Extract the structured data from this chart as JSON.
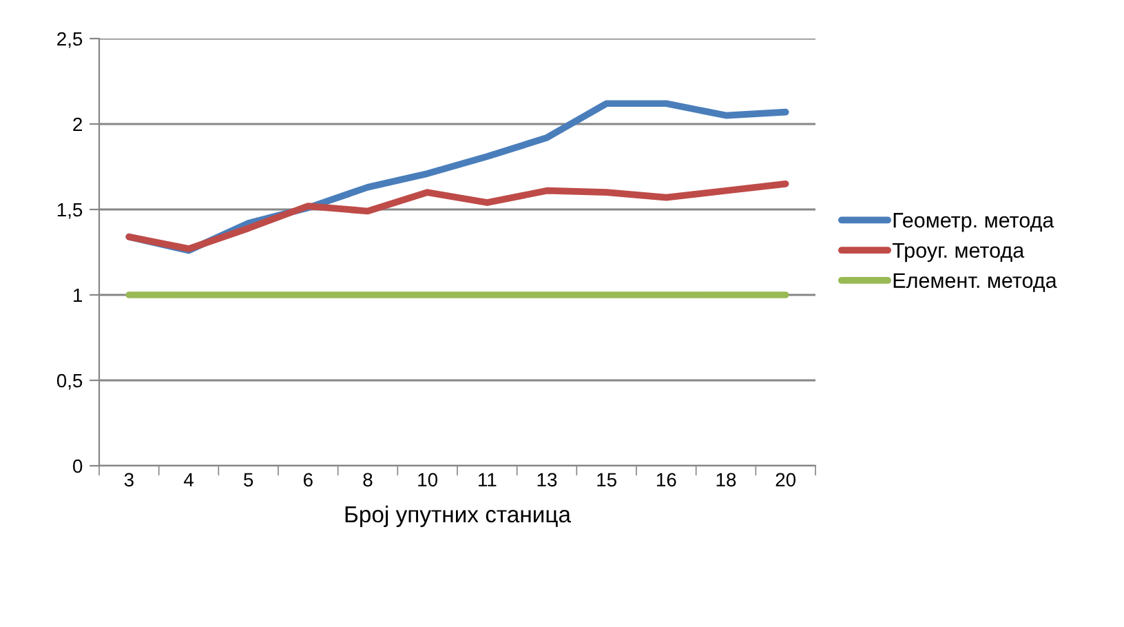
{
  "chart_data": {
    "type": "line",
    "xlabel": "Број упутних станица",
    "categories": [
      "3",
      "4",
      "5",
      "6",
      "8",
      "10",
      "11",
      "13",
      "15",
      "16",
      "18",
      "20"
    ],
    "series": [
      {
        "name": "Геометр. метода",
        "color": "#4a7ebb",
        "values": [
          1.34,
          1.26,
          1.42,
          1.51,
          1.63,
          1.71,
          1.81,
          1.92,
          2.12,
          2.12,
          2.05,
          2.07
        ]
      },
      {
        "name": "Троуг. метода",
        "color": "#be4b48",
        "values": [
          1.34,
          1.27,
          1.39,
          1.52,
          1.49,
          1.6,
          1.54,
          1.61,
          1.6,
          1.57,
          1.61,
          1.65
        ]
      },
      {
        "name": "Елемент. метода",
        "color": "#98b954",
        "values": [
          1,
          1,
          1,
          1,
          1,
          1,
          1,
          1,
          1,
          1,
          1,
          1
        ]
      }
    ],
    "ylim": [
      0,
      2.5
    ],
    "yticks": [
      0,
      {
        "value": 0.5,
        "label": "0,5"
      },
      1,
      {
        "value": 1.5,
        "label": "1,5"
      },
      2,
      {
        "value": 2.5,
        "label": "2,5"
      }
    ],
    "grid": "y",
    "legend": "right",
    "marker": "none",
    "line_style": "solid"
  }
}
